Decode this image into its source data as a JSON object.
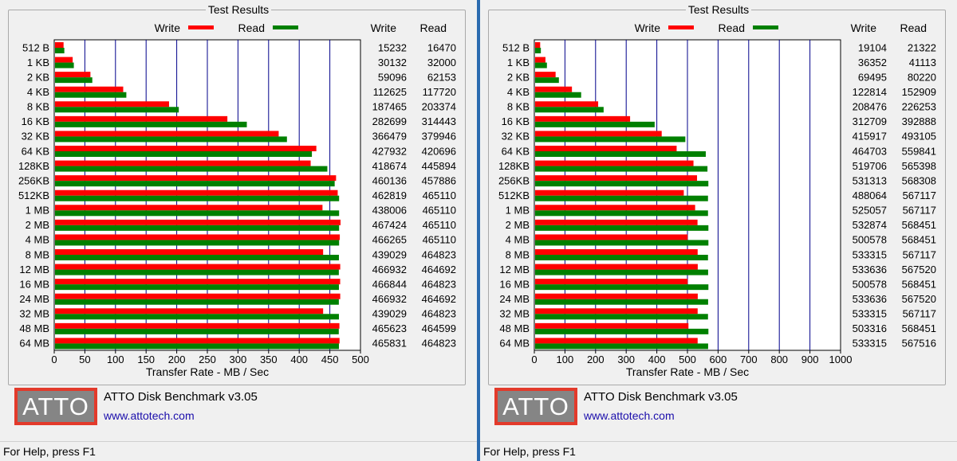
{
  "panels": [
    {
      "group_title": "Test Results",
      "app_name": "ATTO Disk Benchmark v3.05",
      "app_link": "www.attotech.com",
      "logo_text": "ATTO",
      "status": "For Help, press F1"
    },
    {
      "group_title": "Test Results",
      "app_name": "ATTO Disk Benchmark v3.05",
      "app_link": "www.attotech.com",
      "logo_text": "ATTO",
      "status": "For Help, press F1"
    }
  ],
  "colors": {
    "write": "#ff0000",
    "read": "#008000",
    "grid": "#00008b"
  },
  "chart_data": [
    {
      "type": "bar",
      "orientation": "horizontal",
      "xlabel": "Transfer Rate - MB / Sec",
      "xlim": [
        0,
        500
      ],
      "xticks": [
        0,
        50,
        100,
        150,
        200,
        250,
        300,
        350,
        400,
        450,
        500
      ],
      "legend": [
        "Write",
        "Read"
      ],
      "column_headers": [
        "Write",
        "Read"
      ],
      "categories": [
        "512 B",
        "1 KB",
        "2 KB",
        "4 KB",
        "8 KB",
        "16 KB",
        "32 KB",
        "64 KB",
        "128KB",
        "256KB",
        "512KB",
        "1 MB",
        "2 MB",
        "4 MB",
        "8 MB",
        "12 MB",
        "16 MB",
        "24 MB",
        "32 MB",
        "48 MB",
        "64 MB"
      ],
      "series": [
        {
          "name": "Write",
          "values": [
            15232,
            30132,
            59096,
            112625,
            187465,
            282699,
            366479,
            427932,
            418674,
            460136,
            462819,
            438006,
            467424,
            466265,
            439029,
            466932,
            466844,
            466932,
            439029,
            465623,
            465831
          ]
        },
        {
          "name": "Read",
          "values": [
            16470,
            32000,
            62153,
            117720,
            203374,
            314443,
            379946,
            420696,
            445894,
            457886,
            465110,
            465110,
            465110,
            465110,
            464823,
            464692,
            464823,
            464692,
            464823,
            464599,
            464823
          ]
        }
      ]
    },
    {
      "type": "bar",
      "orientation": "horizontal",
      "xlabel": "Transfer Rate - MB / Sec",
      "xlim": [
        0,
        1000
      ],
      "xticks": [
        0,
        100,
        200,
        300,
        400,
        500,
        600,
        700,
        800,
        900,
        1000
      ],
      "legend": [
        "Write",
        "Read"
      ],
      "column_headers": [
        "Write",
        "Read"
      ],
      "categories": [
        "512 B",
        "1 KB",
        "2 KB",
        "4 KB",
        "8 KB",
        "16 KB",
        "32 KB",
        "64 KB",
        "128KB",
        "256KB",
        "512KB",
        "1 MB",
        "2 MB",
        "4 MB",
        "8 MB",
        "12 MB",
        "16 MB",
        "24 MB",
        "32 MB",
        "48 MB",
        "64 MB"
      ],
      "series": [
        {
          "name": "Write",
          "values": [
            19104,
            36352,
            69495,
            122814,
            208476,
            312709,
            415917,
            464703,
            519706,
            531313,
            488064,
            525057,
            532874,
            500578,
            533315,
            533636,
            500578,
            533636,
            533315,
            503316,
            533315
          ]
        },
        {
          "name": "Read",
          "values": [
            21322,
            41113,
            80220,
            152909,
            226253,
            392888,
            493105,
            559841,
            565398,
            568308,
            567117,
            567117,
            568451,
            568451,
            567117,
            567520,
            568451,
            567520,
            567117,
            568451,
            567516
          ]
        }
      ]
    }
  ]
}
